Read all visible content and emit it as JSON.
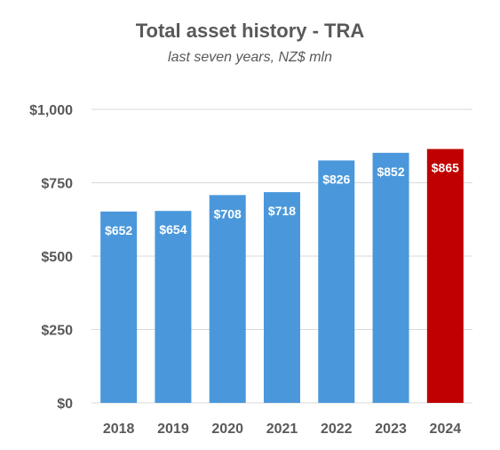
{
  "chart_data": {
    "type": "bar",
    "title": "Total asset history - TRA",
    "subtitle": "last seven years, NZ$ mln",
    "xlabel": "",
    "ylabel": "",
    "categories": [
      "2018",
      "2019",
      "2020",
      "2021",
      "2022",
      "2023",
      "2024"
    ],
    "values": [
      652,
      654,
      708,
      718,
      826,
      852,
      865
    ],
    "data_labels": [
      "$652",
      "$654",
      "$708",
      "$718",
      "$826",
      "$852",
      "$865"
    ],
    "ylim": [
      0,
      1000
    ],
    "yticks": [
      0,
      250,
      500,
      750,
      1000
    ],
    "ytick_labels": [
      "$0",
      "$250",
      "$500",
      "$750",
      "$1,000"
    ],
    "grid": true,
    "legend": "none",
    "colors": {
      "default_bar": "#4a98db",
      "highlight_bar": "#c00000",
      "gridline": "#d9d9d9",
      "text": "#595959"
    },
    "highlight_category": "2024"
  }
}
